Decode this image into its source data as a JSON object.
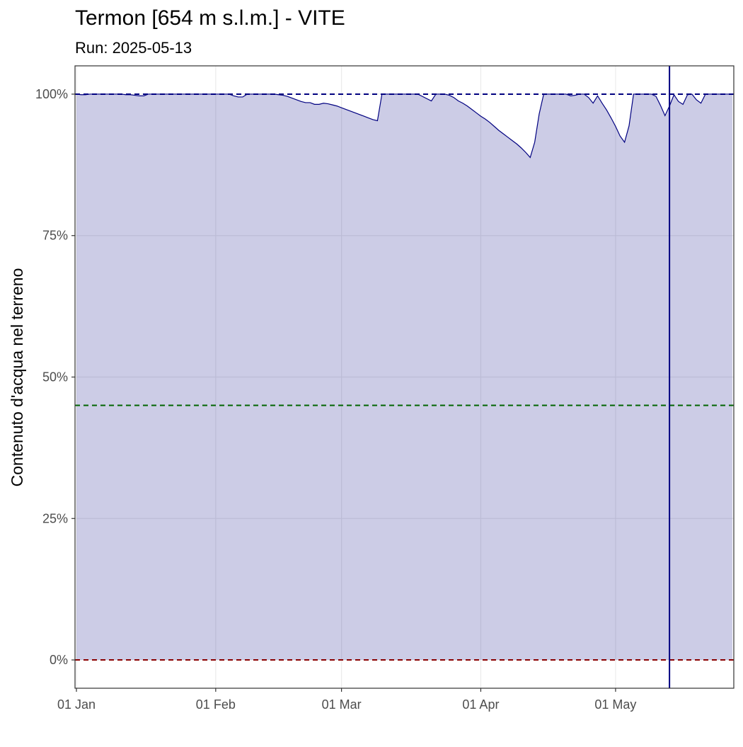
{
  "chart_data": {
    "type": "area",
    "title": "Termon [654 m s.l.m.] - VITE",
    "subtitle": "Run: 2025-05-13",
    "ylabel": "Contenuto d'acqua nel terreno",
    "color": "#000080",
    "fill_opacity": 0.2,
    "grid": true,
    "x": [
      "01 Jan",
      "02 Jan",
      "03 Jan",
      "04 Jan",
      "05 Jan",
      "06 Jan",
      "07 Jan",
      "08 Jan",
      "09 Jan",
      "10 Jan",
      "11 Jan",
      "12 Jan",
      "13 Jan",
      "14 Jan",
      "15 Jan",
      "16 Jan",
      "17 Jan",
      "18 Jan",
      "19 Jan",
      "20 Jan",
      "21 Jan",
      "22 Jan",
      "23 Jan",
      "24 Jan",
      "25 Jan",
      "26 Jan",
      "27 Jan",
      "28 Jan",
      "29 Jan",
      "30 Jan",
      "31 Jan",
      "01 Feb",
      "02 Feb",
      "03 Feb",
      "04 Feb",
      "05 Feb",
      "06 Feb",
      "07 Feb",
      "08 Feb",
      "09 Feb",
      "10 Feb",
      "11 Feb",
      "12 Feb",
      "13 Feb",
      "14 Feb",
      "15 Feb",
      "16 Feb",
      "17 Feb",
      "18 Feb",
      "19 Feb",
      "20 Feb",
      "21 Feb",
      "22 Feb",
      "23 Feb",
      "24 Feb",
      "25 Feb",
      "26 Feb",
      "27 Feb",
      "28 Feb",
      "01 Mar",
      "02 Mar",
      "03 Mar",
      "04 Mar",
      "05 Mar",
      "06 Mar",
      "07 Mar",
      "08 Mar",
      "09 Mar",
      "10 Mar",
      "11 Mar",
      "12 Mar",
      "13 Mar",
      "14 Mar",
      "15 Mar",
      "16 Mar",
      "17 Mar",
      "18 Mar",
      "19 Mar",
      "20 Mar",
      "21 Mar",
      "22 Mar",
      "23 Mar",
      "24 Mar",
      "25 Mar",
      "26 Mar",
      "27 Mar",
      "28 Mar",
      "29 Mar",
      "30 Mar",
      "31 Mar",
      "01 Apr",
      "02 Apr",
      "03 Apr",
      "04 Apr",
      "05 Apr",
      "06 Apr",
      "07 Apr",
      "08 Apr",
      "09 Apr",
      "10 Apr",
      "11 Apr",
      "12 Apr",
      "13 Apr",
      "14 Apr",
      "15 Apr",
      "16 Apr",
      "17 Apr",
      "18 Apr",
      "19 Apr",
      "20 Apr",
      "21 Apr",
      "22 Apr",
      "23 Apr",
      "24 Apr",
      "25 Apr",
      "26 Apr",
      "27 Apr",
      "28 Apr",
      "29 Apr",
      "30 Apr",
      "01 May",
      "02 May",
      "03 May",
      "04 May",
      "05 May",
      "06 May",
      "07 May",
      "08 May",
      "09 May",
      "10 May",
      "11 May",
      "12 May",
      "13 May",
      "14 May",
      "15 May",
      "16 May",
      "17 May",
      "18 May",
      "19 May",
      "20 May",
      "21 May",
      "22 May",
      "23 May",
      "24 May",
      "25 May",
      "26 May",
      "27 May"
    ],
    "values": [
      100,
      99.9,
      99.9,
      100,
      100,
      100,
      100,
      100,
      100,
      100,
      100,
      99.9,
      99.9,
      99.8,
      99.7,
      99.7,
      100,
      100,
      100,
      100,
      100,
      100,
      100,
      100,
      100,
      100,
      100,
      100,
      100,
      100,
      100,
      100,
      100,
      100,
      100,
      99.7,
      99.5,
      99.5,
      100,
      100,
      100,
      100,
      100,
      100,
      100,
      99.9,
      99.8,
      99.6,
      99.3,
      99.0,
      98.7,
      98.5,
      98.5,
      98.2,
      98.2,
      98.4,
      98.3,
      98.1,
      97.9,
      97.6,
      97.3,
      97.0,
      96.7,
      96.4,
      96.1,
      95.8,
      95.5,
      95.3,
      100,
      100,
      100,
      100,
      100,
      100,
      100,
      100,
      100,
      99.6,
      99.2,
      98.8,
      100,
      100,
      100,
      99.8,
      99.4,
      98.8,
      98.4,
      97.9,
      97.3,
      96.7,
      96.1,
      95.6,
      95.0,
      94.3,
      93.6,
      93.0,
      92.4,
      91.8,
      91.2,
      90.5,
      89.7,
      88.8,
      91.5,
      96.5,
      100,
      100,
      100,
      100,
      100,
      100,
      99.7,
      99.8,
      100,
      100,
      99.4,
      98.4,
      99.7,
      98.4,
      97.2,
      95.8,
      94.3,
      92.6,
      91.5,
      94.4,
      100,
      100,
      100,
      100,
      100,
      99.6,
      98.0,
      96.2,
      97.9,
      99.9,
      98.7,
      98.2,
      99.9,
      100,
      99.0,
      98.4,
      100,
      100,
      100,
      100,
      100,
      100,
      100
    ],
    "xlim": [
      "01 Jan",
      "27 May"
    ],
    "xticks": [
      "01 Jan",
      "01 Feb",
      "01 Mar",
      "01 Apr",
      "01 May"
    ],
    "ylim": [
      -5,
      105
    ],
    "yticks": [
      {
        "value": 0,
        "label": "0%"
      },
      {
        "value": 25,
        "label": "25%"
      },
      {
        "value": 50,
        "label": "50%"
      },
      {
        "value": 75,
        "label": "75%"
      },
      {
        "value": 100,
        "label": "100%"
      }
    ],
    "hlines": [
      {
        "value": 100,
        "color": "#000080"
      },
      {
        "value": 45,
        "color": "#006400"
      },
      {
        "value": 0,
        "color": "#8b0000"
      }
    ],
    "vline": {
      "value": "13 May",
      "color": "#000080"
    }
  }
}
